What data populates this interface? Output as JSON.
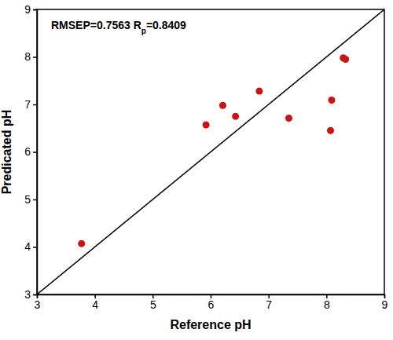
{
  "chart_data": {
    "type": "scatter",
    "x_label": "Reference pH",
    "y_label": "Predicated pH",
    "annotations": [
      {
        "text": "RMSEP=0.7563 R"
      },
      {
        "text": "p",
        "subscript": true
      },
      {
        "text": "=0.8409"
      }
    ],
    "series": [
      {
        "type": "scatter",
        "color": "#cc1111",
        "marker": "circle",
        "x": [
          3.77,
          5.92,
          6.21,
          6.43,
          6.84,
          7.35,
          8.07,
          8.09,
          8.29,
          8.33
        ],
        "values": [
          4.07,
          6.57,
          6.98,
          6.75,
          7.28,
          6.71,
          6.45,
          7.09,
          7.98,
          7.95
        ]
      },
      {
        "type": "line",
        "color": "#000000",
        "line_style": "solid",
        "x": [
          3,
          9
        ],
        "values": [
          3,
          9
        ]
      }
    ],
    "xlim": [
      3,
      9
    ],
    "ylim": [
      3,
      9
    ],
    "xticks": [
      3,
      4,
      5,
      6,
      7,
      8,
      9
    ],
    "yticks": [
      3,
      4,
      5,
      6,
      7,
      8,
      9
    ],
    "grid": false
  }
}
